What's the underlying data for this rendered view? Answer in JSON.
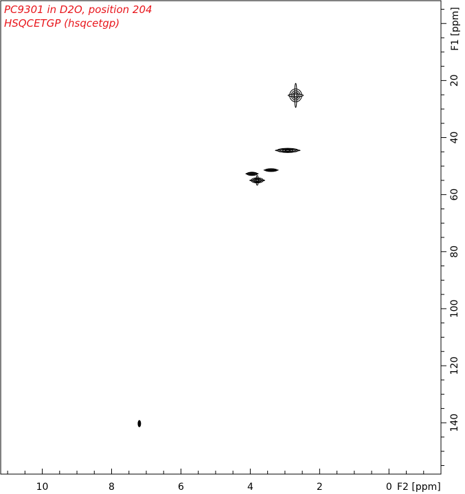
{
  "title_lines": [
    "PC9301 in D2O, position 204",
    "HSQCETGP (hsqcetgp)"
  ],
  "colors": {
    "title": "#e8151b",
    "axis": "#000000",
    "contour": "#000000"
  },
  "chart_data": {
    "type": "scatter",
    "title": "PC9301 in D2O, position 204",
    "subtitle": "HSQCETGP (hsqcetgp)",
    "xlabel": "F2 [ppm]",
    "ylabel": "F1 [ppm]",
    "xlim": [
      11.2,
      -1.5
    ],
    "ylim": [
      -8,
      158
    ],
    "x_reversed": true,
    "y_increases_downward": true,
    "grid": false,
    "legend": "none",
    "x_ticks": [
      10,
      8,
      6,
      4,
      2,
      0
    ],
    "x_ticklabels": [
      "10",
      "8",
      "6",
      "4",
      "2",
      "0"
    ],
    "x_minor_step": 0.5,
    "y_ticks": [
      20,
      40,
      60,
      80,
      100,
      120,
      140
    ],
    "y_ticklabels": [
      "20",
      "40",
      "60",
      "80",
      "100",
      "120",
      "140"
    ],
    "y_minor_step": 5,
    "peaks": [
      {
        "x": 2.69,
        "y": 25.2,
        "x_width": 0.35,
        "y_width": 4.5,
        "kind": "cross"
      },
      {
        "x": 2.92,
        "y": 44.5,
        "x_width": 0.6,
        "y_width": 1.5,
        "kind": "wide"
      },
      {
        "x": 3.4,
        "y": 51.4,
        "x_width": 0.35,
        "y_width": 1.0,
        "kind": "wide"
      },
      {
        "x": 3.95,
        "y": 52.7,
        "x_width": 0.3,
        "y_width": 1.2,
        "kind": "wide"
      },
      {
        "x": 3.8,
        "y": 55.0,
        "x_width": 0.35,
        "y_width": 1.8,
        "kind": "cross"
      },
      {
        "x": 7.2,
        "y": 140.3,
        "x_width": 0.06,
        "y_width": 2.0,
        "kind": "tall"
      }
    ]
  }
}
